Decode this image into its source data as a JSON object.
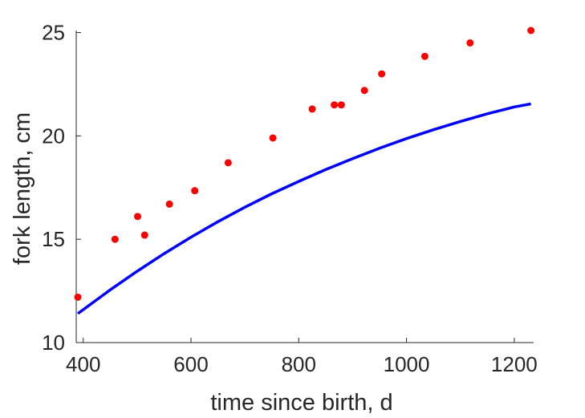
{
  "chart_data": {
    "type": "scatter",
    "xlabel": "time since birth, d",
    "ylabel": "fork length, cm",
    "xlim": [
      387,
      1236
    ],
    "ylim": [
      10,
      25.1
    ],
    "xticks": [
      400,
      600,
      800,
      1000,
      1200
    ],
    "yticks": [
      10,
      15,
      20,
      25
    ],
    "xtick_labels": [
      "400",
      "600",
      "800",
      "1000",
      "1200"
    ],
    "ytick_labels": [
      "10",
      "15",
      "20",
      "25"
    ],
    "grid": false,
    "series": [
      {
        "kind": "points",
        "color": "#ff0000",
        "x": [
          390,
          459,
          501,
          514,
          560,
          607,
          669,
          752,
          825,
          866,
          879,
          922,
          954,
          1034,
          1118,
          1231
        ],
        "y": [
          12.2,
          15.0,
          16.1,
          15.2,
          16.7,
          17.35,
          18.7,
          19.9,
          21.3,
          21.5,
          21.5,
          22.2,
          23.0,
          23.85,
          24.5,
          25.1
        ]
      },
      {
        "kind": "curve",
        "color": "#0000ff",
        "x": [
          390,
          450,
          500,
          550,
          600,
          650,
          700,
          750,
          800,
          850,
          900,
          950,
          1000,
          1050,
          1100,
          1150,
          1200,
          1231
        ],
        "y": [
          11.4,
          12.55,
          13.45,
          14.3,
          15.1,
          15.85,
          16.55,
          17.2,
          17.8,
          18.37,
          18.9,
          19.4,
          19.87,
          20.3,
          20.7,
          21.07,
          21.4,
          21.55
        ]
      }
    ]
  }
}
